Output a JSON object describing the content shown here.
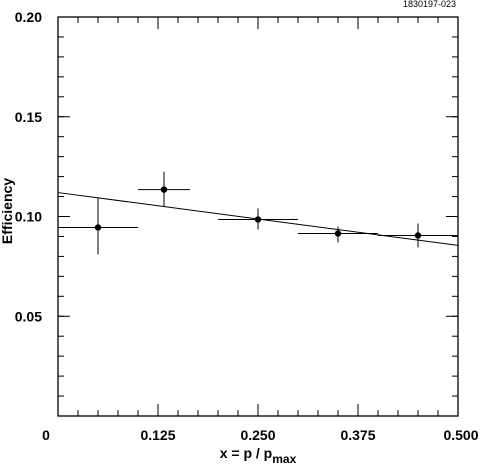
{
  "figure_id": "1830197-023",
  "chart_data": {
    "type": "scatter",
    "xlabel": "x = p / p",
    "xlabel_sub": "max",
    "ylabel": "Efficiency",
    "xlim": [
      0,
      0.5
    ],
    "ylim": [
      0,
      0.2
    ],
    "x_ticks": [
      {
        "value": 0,
        "label": "0"
      },
      {
        "value": 0.125,
        "label": "0.125"
      },
      {
        "value": 0.25,
        "label": "0.250"
      },
      {
        "value": 0.375,
        "label": "0.375"
      },
      {
        "value": 0.5,
        "label": "0.500"
      }
    ],
    "y_ticks": [
      {
        "value": 0.05,
        "label": "0.05"
      },
      {
        "value": 0.1,
        "label": "0.10"
      },
      {
        "value": 0.15,
        "label": "0.15"
      },
      {
        "value": 0.2,
        "label": "0.20"
      }
    ],
    "x_minor_step": 0.025,
    "y_minor_step": 0.01,
    "grid": false,
    "series": [
      {
        "points": [
          {
            "x": 0.05,
            "y": 0.0945,
            "xerr": 0.05,
            "yerr_low": 0.0135,
            "yerr_high": 0.0145
          },
          {
            "x": 0.1325,
            "y": 0.1135,
            "xerr": 0.0325,
            "yerr_low": 0.0085,
            "yerr_high": 0.009
          },
          {
            "x": 0.25,
            "y": 0.0985,
            "xerr": 0.05,
            "yerr_low": 0.005,
            "yerr_high": 0.0055
          },
          {
            "x": 0.35,
            "y": 0.0915,
            "xerr": 0.05,
            "yerr_low": 0.0045,
            "yerr_high": 0.0035
          },
          {
            "x": 0.45,
            "y": 0.0905,
            "xerr": 0.05,
            "yerr_low": 0.006,
            "yerr_high": 0.006
          }
        ]
      }
    ],
    "fit_line": {
      "x": [
        0,
        0.5
      ],
      "y": [
        0.112,
        0.0855
      ]
    }
  }
}
